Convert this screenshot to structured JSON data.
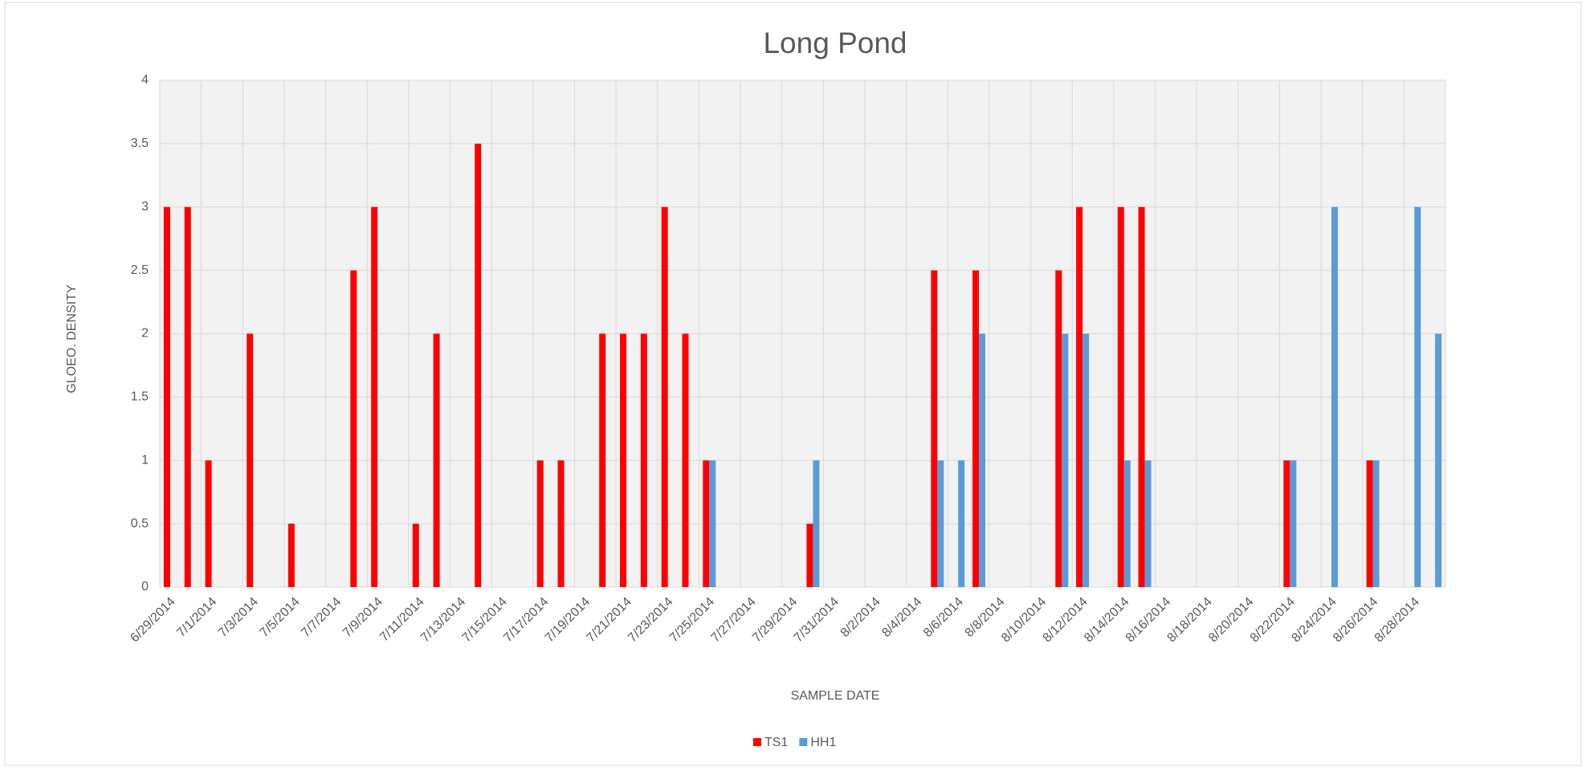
{
  "chart_data": {
    "type": "bar",
    "title": "Long Pond",
    "x_label": "SAMPLE DATE",
    "y_label": "GLOEO. DENSITY",
    "categories": [
      "6/29/2014",
      null,
      "7/1/2014",
      null,
      "7/3/2014",
      null,
      "7/5/2014",
      null,
      "7/7/2014",
      null,
      "7/9/2014",
      null,
      "7/11/2014",
      null,
      "7/13/2014",
      null,
      "7/15/2014",
      null,
      "7/17/2014",
      null,
      "7/19/2014",
      null,
      "7/21/2014",
      null,
      "7/23/2014",
      null,
      "7/25/2014",
      null,
      "7/27/2014",
      null,
      "7/29/2014",
      null,
      "7/31/2014",
      null,
      "8/2/2014",
      null,
      "8/4/2014",
      null,
      "8/6/2014",
      null,
      "8/8/2014",
      null,
      "8/10/2014",
      null,
      "8/12/2014",
      null,
      "8/14/2014",
      null,
      "8/16/2014",
      null,
      "8/18/2014",
      null,
      "8/20/2014",
      null,
      "8/22/2014",
      null,
      "8/24/2014",
      null,
      "8/26/2014",
      null,
      "8/28/2014",
      null
    ],
    "series": [
      {
        "name": "TS1",
        "color": "#ff0000",
        "values": [
          3,
          3,
          1,
          null,
          2,
          null,
          0.5,
          null,
          null,
          2.5,
          3,
          null,
          0.5,
          2,
          null,
          3.5,
          null,
          null,
          1,
          1,
          null,
          2,
          2,
          2,
          3,
          2,
          1,
          null,
          null,
          null,
          null,
          0.5,
          null,
          null,
          null,
          null,
          null,
          2.5,
          null,
          2.5,
          null,
          null,
          null,
          2.5,
          3,
          null,
          3,
          3,
          null,
          null,
          null,
          null,
          null,
          null,
          1,
          null,
          null,
          null,
          1,
          null,
          null,
          null
        ]
      },
      {
        "name": "HH1",
        "color": "#5b9bd5",
        "values": [
          null,
          null,
          null,
          null,
          null,
          null,
          null,
          null,
          null,
          null,
          null,
          null,
          null,
          null,
          null,
          null,
          null,
          null,
          null,
          null,
          null,
          null,
          null,
          null,
          null,
          null,
          1,
          null,
          null,
          null,
          null,
          1,
          null,
          null,
          null,
          null,
          null,
          1,
          1,
          2,
          null,
          null,
          null,
          2,
          2,
          null,
          1,
          1,
          null,
          null,
          null,
          null,
          null,
          null,
          1,
          null,
          3,
          null,
          1,
          null,
          3,
          2
        ]
      }
    ],
    "ylim": [
      0,
      4
    ],
    "yticks": [
      0,
      0.5,
      1,
      1.5,
      2,
      2.5,
      3,
      3.5,
      4
    ],
    "grid": true,
    "legend": "bottom"
  }
}
